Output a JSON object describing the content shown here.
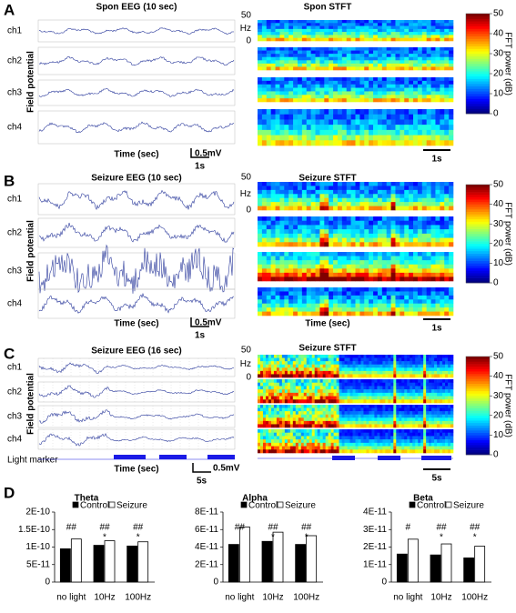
{
  "panels": [
    {
      "letter": "A",
      "eeg_title": "Spon EEG (10 sec)",
      "stft_title": "Spon STFT",
      "channels": [
        "ch1",
        "ch2",
        "ch3",
        "ch4"
      ],
      "y_label": "Field potential",
      "eeg_x_label": "Time (sec)",
      "scale_v": "0.5mV",
      "scale_t": "1s",
      "hz_label": "Hz",
      "hz_ticks": [
        50,
        0
      ],
      "stft_scale": "1s",
      "colorbar_label": "FFT power (dB)",
      "colorbar_ticks": [
        0,
        10,
        20,
        30,
        40,
        50
      ]
    },
    {
      "letter": "B",
      "eeg_title": "Seizure EEG (10 sec)",
      "stft_title": "Seizure STFT",
      "channels": [
        "ch1",
        "ch2",
        "ch3",
        "ch4"
      ],
      "y_label": "Field potential",
      "eeg_x_label": "Time (sec)",
      "scale_v": "0.5mV",
      "scale_t": "1s",
      "hz_label": "Hz",
      "hz_ticks": [
        50,
        0
      ],
      "stft_x_label": "Time (sec)",
      "stft_scale": "1s",
      "colorbar_label": "FFT power (dB)",
      "colorbar_ticks": [
        0,
        10,
        20,
        30,
        40,
        50
      ]
    },
    {
      "letter": "C",
      "eeg_title": "Seizure EEG (16 sec)",
      "stft_title": "Seizure STFT",
      "channels": [
        "ch1",
        "ch2",
        "ch3",
        "ch4"
      ],
      "y_label": "Field potential",
      "light_marker": "Light marker",
      "eeg_x_label": "Time (sec)",
      "scale_v": "0.5mV",
      "scale_t": "5s",
      "hz_label": "Hz",
      "hz_ticks": [
        50,
        0
      ],
      "stft_scale": "5s",
      "colorbar_label": "FFT power (dB)",
      "colorbar_ticks": [
        0,
        10,
        20,
        30,
        40,
        50
      ]
    }
  ],
  "panel_d_letter": "D",
  "chart_data": [
    {
      "type": "bar",
      "title": "Theta",
      "categories": [
        "no light",
        "10Hz",
        "100Hz"
      ],
      "series": [
        {
          "name": "Control",
          "color": "#000000",
          "values": [
            9.5e-11,
            1.05e-10,
            1.03e-10
          ]
        },
        {
          "name": "Seizure",
          "color": "#ffffff",
          "values": [
            1.23e-10,
            1.18e-10,
            1.15e-10
          ]
        }
      ],
      "ylim": [
        0,
        2e-10
      ],
      "yticks": [
        0,
        {
          "value": 5e-11,
          "label": "5E-11"
        },
        {
          "value": 1e-10,
          "label": "1E-10"
        },
        {
          "value": 1.5e-10,
          "label": "1.5E-10"
        },
        {
          "value": 2e-10,
          "label": "2E-10"
        }
      ],
      "annotations": [
        [
          "##"
        ],
        [
          "##",
          "*"
        ],
        [
          "##",
          "*"
        ]
      ]
    },
    {
      "type": "bar",
      "title": "Alpha",
      "categories": [
        "no light",
        "10Hz",
        "100Hz"
      ],
      "series": [
        {
          "name": "Control",
          "color": "#000000",
          "values": [
            4.3e-11,
            4.65e-11,
            4.3e-11
          ]
        },
        {
          "name": "Seizure",
          "color": "#ffffff",
          "values": [
            6.3e-11,
            5.7e-11,
            5.3e-11
          ]
        }
      ],
      "ylim": [
        0,
        8e-11
      ],
      "yticks": [
        0,
        {
          "value": 2e-11,
          "label": "2E-11"
        },
        {
          "value": 4e-11,
          "label": "4E-11"
        },
        {
          "value": 6e-11,
          "label": "6E-11"
        },
        {
          "value": 8e-11,
          "label": "8E-11"
        }
      ],
      "annotations": [
        [
          "##"
        ],
        [
          "##",
          "*"
        ],
        [
          "##",
          "*"
        ]
      ]
    },
    {
      "type": "bar",
      "title": "Beta",
      "categories": [
        "no light",
        "10Hz",
        "100Hz"
      ],
      "series": [
        {
          "name": "Control",
          "color": "#000000",
          "values": [
            1.6e-11,
            1.55e-11,
            1.38e-11
          ]
        },
        {
          "name": "Seizure",
          "color": "#ffffff",
          "values": [
            2.45e-11,
            2.18e-11,
            2.05e-11
          ]
        }
      ],
      "ylim": [
        0,
        4e-11
      ],
      "yticks": [
        0,
        {
          "value": 1e-11,
          "label": "1E-11"
        },
        {
          "value": 2e-11,
          "label": "2E-11"
        },
        {
          "value": 3e-11,
          "label": "3E-11"
        },
        {
          "value": 4e-11,
          "label": "4E-11"
        }
      ],
      "annotations": [
        [
          "#"
        ],
        [
          "##",
          "*"
        ],
        [
          "##",
          "*"
        ]
      ]
    }
  ]
}
